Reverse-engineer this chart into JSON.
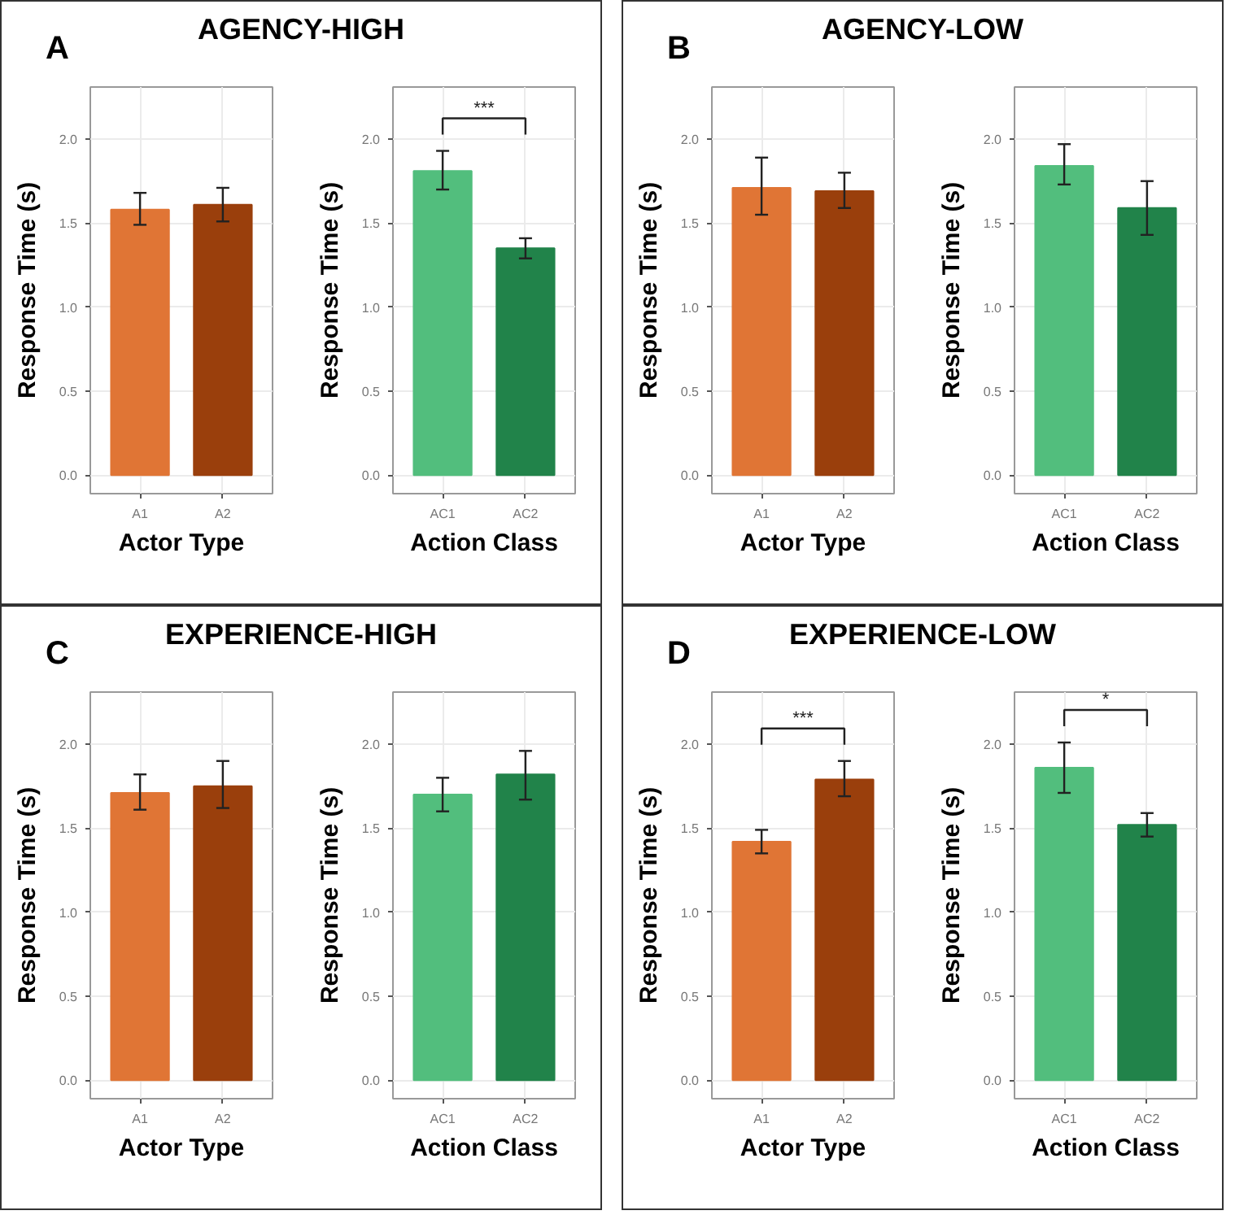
{
  "chart_data": [
    {
      "type": "bar",
      "title": "AGENCY-HIGH",
      "annotations": [
        "A"
      ],
      "categories": [
        "A1",
        "A2"
      ],
      "values": [
        1.58,
        1.61
      ],
      "errors": [
        [
          1.49,
          1.68
        ],
        [
          1.51,
          1.71
        ]
      ],
      "colors": [
        "#e07535",
        "#9a3f0c"
      ],
      "xlabel": "Actor Type",
      "ylabel": "Response Time (s)",
      "ylim": [
        -0.11,
        2.31
      ],
      "yticks": [
        {
          "value": 0,
          "label": "0.0"
        },
        {
          "value": 0.5,
          "label": "0.5"
        },
        {
          "value": 1,
          "label": "1.0"
        },
        {
          "value": 1.5,
          "label": "1.5"
        },
        {
          "value": 2,
          "label": "2.0"
        }
      ],
      "grid": true
    },
    {
      "type": "bar",
      "annotations": [
        "***"
      ],
      "categories": [
        "AC1",
        "AC2"
      ],
      "values": [
        1.81,
        1.35
      ],
      "errors": [
        [
          1.7,
          1.93
        ],
        [
          1.29,
          1.41
        ]
      ],
      "colors": [
        "#52be7d",
        "#21834a"
      ],
      "xlabel": "Action Class",
      "ylabel": "Response Time (s)",
      "ylim": [
        -0.11,
        2.31
      ],
      "yticks": [
        {
          "value": 0,
          "label": "0.0"
        },
        {
          "value": 0.5,
          "label": "0.5"
        },
        {
          "value": 1,
          "label": "1.0"
        },
        {
          "value": 1.5,
          "label": "1.5"
        },
        {
          "value": 2,
          "label": "2.0"
        }
      ],
      "grid": true
    },
    {
      "type": "bar",
      "title": "AGENCY-LOW",
      "annotations": [
        "B"
      ],
      "categories": [
        "A1",
        "A2"
      ],
      "values": [
        1.71,
        1.69
      ],
      "errors": [
        [
          1.55,
          1.89
        ],
        [
          1.59,
          1.8
        ]
      ],
      "colors": [
        "#e07535",
        "#9a3f0c"
      ],
      "xlabel": "Actor Type",
      "ylabel": "Response Time (s)",
      "ylim": [
        -0.11,
        2.31
      ],
      "yticks": [
        {
          "value": 0,
          "label": "0.0"
        },
        {
          "value": 0.5,
          "label": "0.5"
        },
        {
          "value": 1,
          "label": "1.0"
        },
        {
          "value": 1.5,
          "label": "1.5"
        },
        {
          "value": 2,
          "label": "2.0"
        }
      ],
      "grid": true
    },
    {
      "type": "bar",
      "categories": [
        "AC1",
        "AC2"
      ],
      "values": [
        1.84,
        1.59
      ],
      "errors": [
        [
          1.73,
          1.97
        ],
        [
          1.43,
          1.75
        ]
      ],
      "colors": [
        "#52be7d",
        "#21834a"
      ],
      "xlabel": "Action Class",
      "ylabel": "Response Time (s)",
      "ylim": [
        -0.11,
        2.31
      ],
      "yticks": [
        {
          "value": 0,
          "label": "0.0"
        },
        {
          "value": 0.5,
          "label": "0.5"
        },
        {
          "value": 1,
          "label": "1.0"
        },
        {
          "value": 1.5,
          "label": "1.5"
        },
        {
          "value": 2,
          "label": "2.0"
        }
      ],
      "grid": true
    },
    {
      "type": "bar",
      "title": "EXPERIENCE-HIGH",
      "annotations": [
        "C"
      ],
      "categories": [
        "A1",
        "A2"
      ],
      "values": [
        1.71,
        1.75
      ],
      "errors": [
        [
          1.61,
          1.82
        ],
        [
          1.62,
          1.9
        ]
      ],
      "colors": [
        "#e07535",
        "#9a3f0c"
      ],
      "xlabel": "Actor Type",
      "ylabel": "Response Time (s)",
      "ylim": [
        -0.11,
        2.31
      ],
      "yticks": [
        {
          "value": 0,
          "label": "0.0"
        },
        {
          "value": 0.5,
          "label": "0.5"
        },
        {
          "value": 1,
          "label": "1.0"
        },
        {
          "value": 1.5,
          "label": "1.5"
        },
        {
          "value": 2,
          "label": "2.0"
        }
      ],
      "grid": true
    },
    {
      "type": "bar",
      "categories": [
        "AC1",
        "AC2"
      ],
      "values": [
        1.7,
        1.82
      ],
      "errors": [
        [
          1.6,
          1.8
        ],
        [
          1.67,
          1.96
        ]
      ],
      "colors": [
        "#52be7d",
        "#21834a"
      ],
      "xlabel": "Action Class",
      "ylabel": "Response Time (s)",
      "ylim": [
        -0.11,
        2.31
      ],
      "yticks": [
        {
          "value": 0,
          "label": "0.0"
        },
        {
          "value": 0.5,
          "label": "0.5"
        },
        {
          "value": 1,
          "label": "1.0"
        },
        {
          "value": 1.5,
          "label": "1.5"
        },
        {
          "value": 2,
          "label": "2.0"
        }
      ],
      "grid": true
    },
    {
      "type": "bar",
      "title": "EXPERIENCE-LOW",
      "annotations": [
        "D",
        "***"
      ],
      "categories": [
        "A1",
        "A2"
      ],
      "values": [
        1.42,
        1.79
      ],
      "errors": [
        [
          1.35,
          1.49
        ],
        [
          1.69,
          1.9
        ]
      ],
      "colors": [
        "#e07535",
        "#9a3f0c"
      ],
      "xlabel": "Actor Type",
      "ylabel": "Response Time (s)",
      "ylim": [
        -0.11,
        2.31
      ],
      "yticks": [
        {
          "value": 0,
          "label": "0.0"
        },
        {
          "value": 0.5,
          "label": "0.5"
        },
        {
          "value": 1,
          "label": "1.0"
        },
        {
          "value": 1.5,
          "label": "1.5"
        },
        {
          "value": 2,
          "label": "2.0"
        }
      ],
      "grid": true
    },
    {
      "type": "bar",
      "annotations": [
        "*"
      ],
      "categories": [
        "AC1",
        "AC2"
      ],
      "values": [
        1.86,
        1.52
      ],
      "errors": [
        [
          1.71,
          2.01
        ],
        [
          1.45,
          1.59
        ]
      ],
      "colors": [
        "#52be7d",
        "#21834a"
      ],
      "xlabel": "Action Class",
      "ylabel": "Response Time (s)",
      "ylim": [
        -0.11,
        2.31
      ],
      "yticks": [
        {
          "value": 0,
          "label": "0.0"
        },
        {
          "value": 0.5,
          "label": "0.5"
        },
        {
          "value": 1,
          "label": "1.0"
        },
        {
          "value": 1.5,
          "label": "1.5"
        },
        {
          "value": 2,
          "label": "2.0"
        }
      ],
      "grid": true
    }
  ]
}
